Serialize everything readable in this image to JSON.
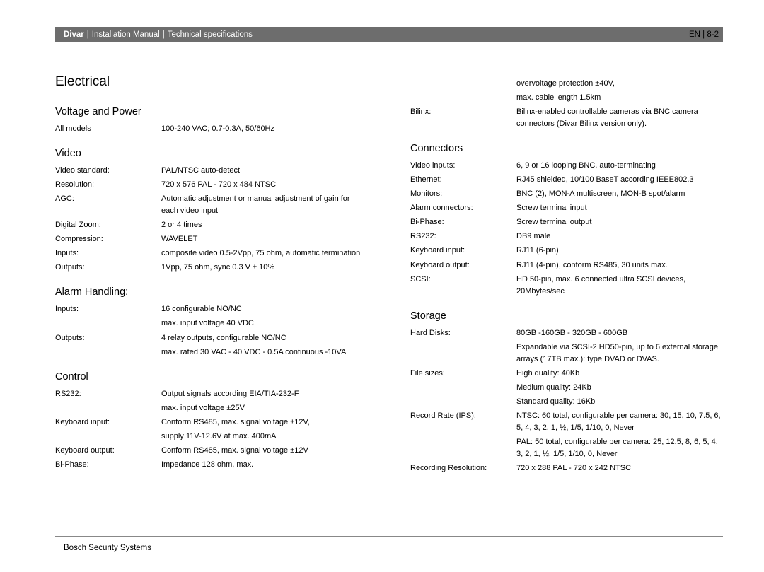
{
  "header": {
    "product": "Divar",
    "subtitle1": "Installation Manual",
    "subtitle2": "Technical specifications",
    "lang": "EN",
    "page": "8-2"
  },
  "footer": "Bosch Security Systems",
  "left": {
    "section": "Electrical",
    "voltage": {
      "title": "Voltage and Power",
      "rows": [
        {
          "l": "All models",
          "v": "100-240 VAC; 0.7-0.3A, 50/60Hz"
        }
      ]
    },
    "video": {
      "title": "Video",
      "rows": [
        {
          "l": "Video standard:",
          "v": "PAL/NTSC auto-detect"
        },
        {
          "l": "Resolution:",
          "v": "720 x 576 PAL - 720 x 484 NTSC"
        },
        {
          "l": "AGC:",
          "v": "Automatic adjustment or manual adjustment of gain for each video input"
        },
        {
          "l": "Digital Zoom:",
          "v": "2 or 4 times"
        },
        {
          "l": "Compression:",
          "v": "WAVELET"
        },
        {
          "l": "Inputs:",
          "v": "composite video 0.5-2Vpp, 75 ohm, automatic termination"
        },
        {
          "l": "Outputs:",
          "v": "1Vpp, 75 ohm, sync 0.3 V ± 10%"
        }
      ]
    },
    "alarm": {
      "title": "Alarm Handling:",
      "rows": [
        {
          "l": "Inputs:",
          "v": "16 configurable NO/NC"
        },
        {
          "l": "",
          "v": "max. input voltage 40 VDC"
        },
        {
          "l": "Outputs:",
          "v": "4 relay outputs, configurable NO/NC"
        },
        {
          "l": "",
          "v": "max. rated 30 VAC - 40 VDC - 0.5A continuous -10VA"
        }
      ]
    },
    "control": {
      "title": "Control",
      "rows": [
        {
          "l": "RS232:",
          "v": "Output signals according EIA/TIA-232-F"
        },
        {
          "l": "",
          "v": "max. input voltage ±25V"
        },
        {
          "l": "Keyboard input:",
          "v": "Conform RS485, max. signal voltage ±12V,"
        },
        {
          "l": "",
          "v": "supply 11V-12.6V at max. 400mA"
        },
        {
          "l": "Keyboard output:",
          "v": "Conform RS485, max. signal voltage ±12V"
        },
        {
          "l": "Bi-Phase:",
          "v": "Impedance 128 ohm, max."
        }
      ]
    }
  },
  "right": {
    "pre": [
      {
        "l": "",
        "v": "overvoltage protection ±40V,"
      },
      {
        "l": "",
        "v": "max. cable length 1.5km"
      },
      {
        "l": "Bilinx:",
        "v": "Bilinx-enabled controllable cameras via BNC camera connectors (Divar Bilinx version only)."
      }
    ],
    "connectors": {
      "title": "Connectors",
      "rows": [
        {
          "l": "Video inputs:",
          "v": "6, 9 or 16 looping BNC, auto-terminating"
        },
        {
          "l": "Ethernet:",
          "v": "RJ45 shielded, 10/100 BaseT according IEEE802.3"
        },
        {
          "l": "Monitors:",
          "v": "BNC (2), MON-A multiscreen, MON-B spot/alarm"
        },
        {
          "l": "Alarm connectors:",
          "v": "Screw terminal input"
        },
        {
          "l": "Bi-Phase:",
          "v": "Screw terminal output"
        },
        {
          "l": "RS232:",
          "v": "DB9 male"
        },
        {
          "l": "Keyboard input:",
          "v": "RJ11 (6-pin)"
        },
        {
          "l": "Keyboard output:",
          "v": "RJ11 (4-pin), conform RS485, 30 units max."
        },
        {
          "l": "SCSI:",
          "v": "HD 50-pin, max. 6 connected ultra SCSI devices, 20Mbytes/sec"
        }
      ]
    },
    "storage": {
      "title": "Storage",
      "rows": [
        {
          "l": "Hard Disks:",
          "v": "80GB -160GB - 320GB - 600GB"
        },
        {
          "l": "",
          "v": "Expandable via SCSI-2 HD50-pin, up to 6 external storage arrays (17TB max.): type DVAD or DVAS."
        },
        {
          "l": "File sizes:",
          "v": "High quality: 40Kb"
        },
        {
          "l": "",
          "v": "Medium quality: 24Kb"
        },
        {
          "l": "",
          "v": "Standard quality: 16Kb"
        },
        {
          "l": "Record Rate (IPS):",
          "v": "NTSC: 60 total, configurable per camera: 30, 15, 10, 7.5, 6, 5, 4, 3, 2, 1, ½, 1/5, 1/10, 0, Never"
        },
        {
          "l": "",
          "v": "PAL: 50 total, configurable per camera: 25, 12.5, 8, 6, 5, 4, 3, 2, 1, ½, 1/5, 1/10, 0, Never"
        },
        {
          "l": "Recording Resolution:",
          "v": "720 x 288 PAL - 720 x 242 NTSC"
        }
      ]
    }
  }
}
